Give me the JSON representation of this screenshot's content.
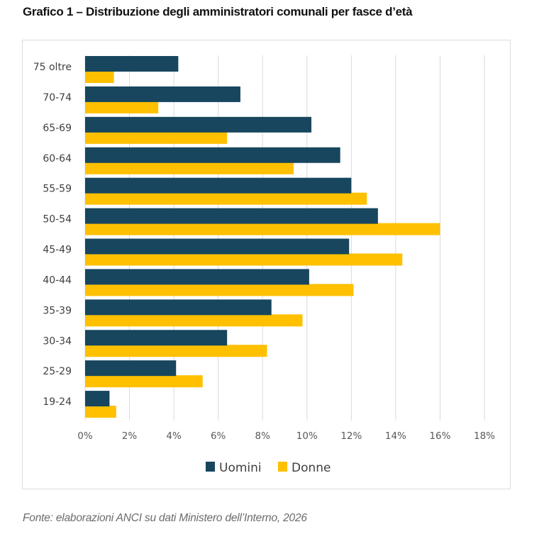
{
  "title": "Grafico 1 – Distribuzione degli amministratori comunali per fasce d’età",
  "source": "Fonte: elaborazioni ANCI su dati Ministero dell’Interno, 2026",
  "chart_data": {
    "type": "bar",
    "orientation": "horizontal",
    "title": "Grafico 1 – Distribuzione degli amministratori comunali per fasce d’età",
    "xlabel": "",
    "ylabel": "",
    "categories": [
      "75 oltre",
      "70-74",
      "65-69",
      "60-64",
      "55-59",
      "50-54",
      "45-49",
      "40-44",
      "35-39",
      "30-34",
      "25-29",
      "19-24"
    ],
    "series": [
      {
        "name": "Uomini",
        "color": "#17465e",
        "values": [
          4.2,
          7.0,
          10.2,
          11.5,
          12.0,
          13.2,
          11.9,
          10.1,
          8.4,
          6.4,
          4.1,
          1.1
        ]
      },
      {
        "name": "Donne",
        "color": "#ffc000",
        "values": [
          1.3,
          3.3,
          6.4,
          9.4,
          12.7,
          16.0,
          14.3,
          12.1,
          9.8,
          8.2,
          5.3,
          1.4
        ]
      }
    ],
    "xlim": [
      0,
      18
    ],
    "xticks": [
      "0%",
      "2%",
      "4%",
      "6%",
      "8%",
      "10%",
      "12%",
      "14%",
      "16%",
      "18%"
    ],
    "grid": true,
    "gridline_color": "#d9d9d9",
    "legend_position": "bottom"
  }
}
